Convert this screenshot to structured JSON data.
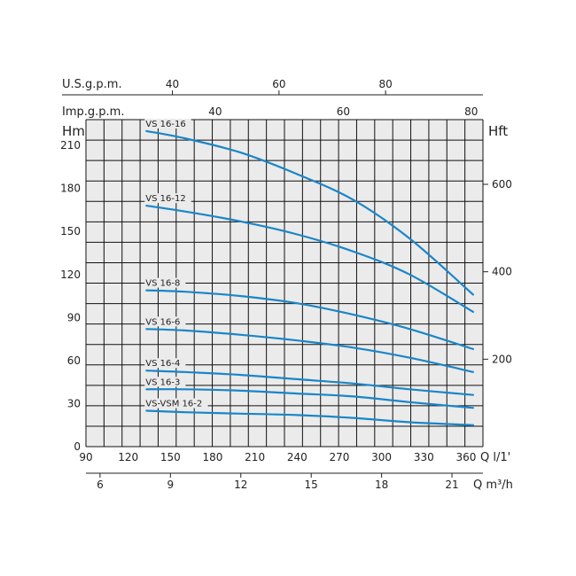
{
  "chart_data": {
    "type": "line",
    "title": "",
    "left_axis": {
      "label": "Hm",
      "ticks": [
        0,
        30,
        60,
        90,
        120,
        150,
        180,
        210
      ],
      "range": [
        0,
        228
      ]
    },
    "right_axis": {
      "label": "Hft",
      "ticks": [
        200,
        400,
        600
      ]
    },
    "bottom_axis_1": {
      "label": "Q l/1'",
      "ticks": [
        90,
        120,
        150,
        180,
        210,
        240,
        270,
        300,
        330,
        360
      ],
      "range": [
        90,
        372
      ]
    },
    "bottom_axis_2": {
      "label": "Q m³/h",
      "ticks": [
        6,
        9,
        12,
        15,
        18,
        21
      ]
    },
    "top_axis_1": {
      "label": "U.S.g.p.m.",
      "ticks": [
        40,
        60,
        80
      ]
    },
    "top_axis_2": {
      "label": "Imp.g.p.m.",
      "ticks": [
        40,
        60,
        80
      ]
    },
    "grid": true,
    "series": [
      {
        "name": "VS 16-16",
        "x": [
          133,
          160,
          200,
          240,
          280,
          320,
          365
        ],
        "y": [
          220,
          215,
          205,
          190,
          172,
          145,
          106
        ]
      },
      {
        "name": "VS 16-12",
        "x": [
          133,
          160,
          200,
          240,
          280,
          320,
          365
        ],
        "y": [
          168,
          164,
          157,
          148,
          136,
          120,
          94
        ]
      },
      {
        "name": "VS 16-8",
        "x": [
          133,
          160,
          200,
          240,
          280,
          320,
          365
        ],
        "y": [
          109,
          108,
          105,
          100,
          92,
          82,
          68
        ]
      },
      {
        "name": "VS 16-6",
        "x": [
          133,
          160,
          200,
          240,
          280,
          320,
          365
        ],
        "y": [
          82,
          81,
          78,
          74,
          69,
          62,
          52
        ]
      },
      {
        "name": "VS 16-4",
        "x": [
          133,
          160,
          200,
          240,
          280,
          320,
          365
        ],
        "y": [
          53,
          52,
          50,
          47,
          44,
          40,
          36
        ]
      },
      {
        "name": "VS 16-3",
        "x": [
          133,
          160,
          200,
          240,
          280,
          320,
          365
        ],
        "y": [
          40,
          40,
          39,
          37,
          35,
          31,
          27
        ]
      },
      {
        "name": "VS-VSM 16-2",
        "x": [
          133,
          160,
          200,
          240,
          280,
          320,
          365
        ],
        "y": [
          25,
          24,
          23,
          22,
          20,
          17,
          15
        ]
      }
    ],
    "colors": {
      "curve": "#1a86c8",
      "grid": "#111111",
      "background": "#ebebeb"
    }
  }
}
